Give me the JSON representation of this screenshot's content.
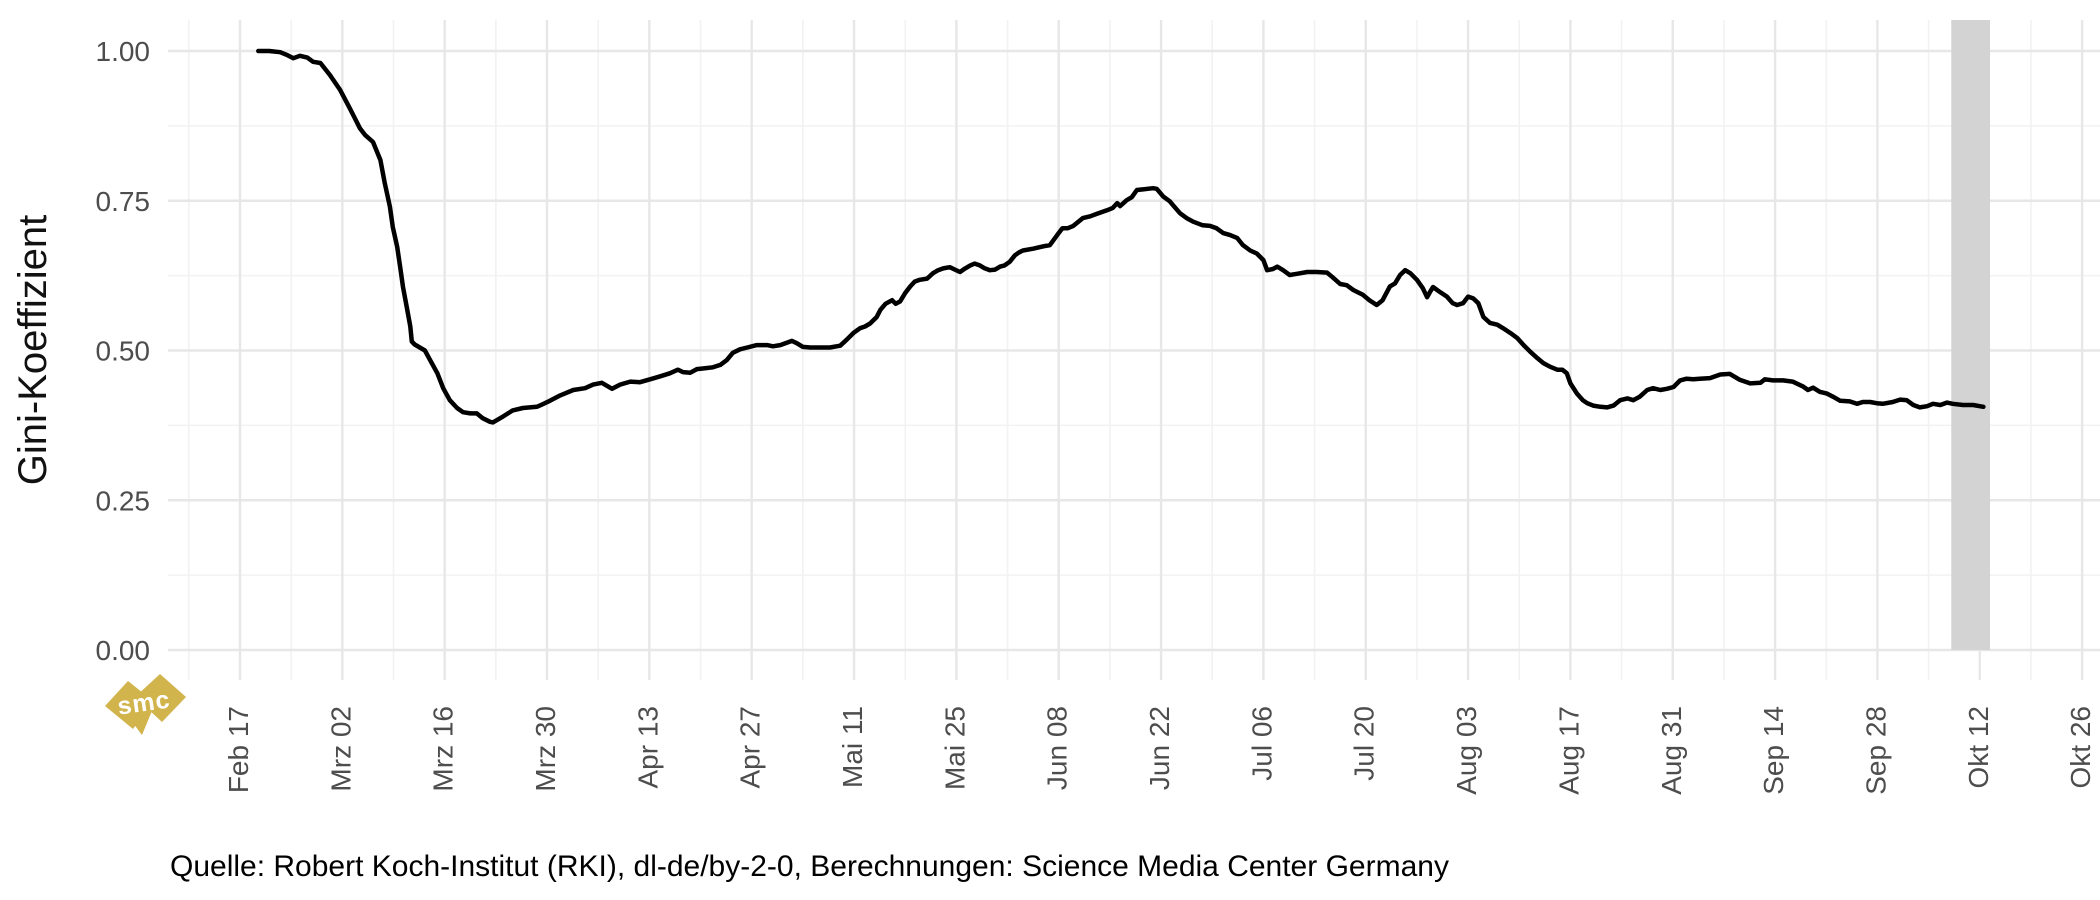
{
  "figure": {
    "ylabel": "Gini-Koeffizient",
    "caption": "Quelle: Robert Koch-Institut (RKI), dl-de/by-2-0, Berechnungen: Science Media Center Germany",
    "watermark_text": "smc"
  },
  "colors": {
    "background": "#ffffff",
    "line": "#000000",
    "grid_major": "#e7e7e7",
    "grid_minor": "#f2f2f2",
    "tick_label": "#4d4d4d",
    "axis_title": "#111111",
    "highlight_band": "#d3d3d3",
    "watermark_gold": "#d2b44c"
  },
  "chart_data": {
    "type": "line",
    "title": "",
    "xlabel": "",
    "ylabel": "Gini-Koeffizient",
    "caption": "Quelle: Robert Koch-Institut (RKI), dl-de/by-2-0, Berechnungen: Science Media Center Germany",
    "legend": "none",
    "grid": "major and minor, light gray on white",
    "x_axis": {
      "unit": "date, year 2020, day offsets measured from Feb 17",
      "tick_labels": [
        "Feb 17",
        "Mrz 02",
        "Mrz 16",
        "Mrz 30",
        "Apr 13",
        "Apr 27",
        "Mai 11",
        "Mai 25",
        "Jun 08",
        "Jun 22",
        "Jul 06",
        "Jul 20",
        "Aug 03",
        "Aug 17",
        "Aug 31",
        "Sep 14",
        "Sep 28",
        "Okt 12",
        "Okt 26"
      ],
      "tick_days": [
        0,
        14,
        28,
        42,
        56,
        70,
        84,
        98,
        112,
        126,
        140,
        154,
        168,
        182,
        196,
        210,
        224,
        238,
        252
      ],
      "minor_grid_interval_days": 7,
      "range_days": [
        -10,
        254
      ]
    },
    "y_axis": {
      "tick_labels": [
        "0.00",
        "0.25",
        "0.50",
        "0.75",
        "1.00"
      ],
      "tick_values": [
        0,
        0.25,
        0.5,
        0.75,
        1.0
      ],
      "minor_grid_values": [
        0.125,
        0.375,
        0.625,
        0.875
      ],
      "range": [
        0,
        1
      ]
    },
    "highlight_band": {
      "start_day": 234.1,
      "end_day": 239.4,
      "from_value": 0,
      "to_value": "panel-top",
      "color": "#d3d3d3"
    },
    "series": [
      {
        "name": "Gini-Koeffizient",
        "color": "#000000",
        "points": [
          [
            2.5,
            1.0
          ],
          [
            4,
            1.0
          ],
          [
            5.5,
            0.998
          ],
          [
            6.5,
            0.993
          ],
          [
            7.3,
            0.988
          ],
          [
            8.2,
            0.992
          ],
          [
            9.2,
            0.989
          ],
          [
            10,
            0.982
          ],
          [
            11,
            0.98
          ],
          [
            12.3,
            0.96
          ],
          [
            13.7,
            0.935
          ],
          [
            15,
            0.905
          ],
          [
            15.7,
            0.888
          ],
          [
            16.4,
            0.871
          ],
          [
            17.1,
            0.86
          ],
          [
            18.2,
            0.848
          ],
          [
            19.2,
            0.818
          ],
          [
            19.8,
            0.78
          ],
          [
            20.5,
            0.74
          ],
          [
            20.9,
            0.706
          ],
          [
            21.5,
            0.673
          ],
          [
            21.9,
            0.64
          ],
          [
            22.3,
            0.606
          ],
          [
            22.8,
            0.573
          ],
          [
            23.3,
            0.54
          ],
          [
            23.5,
            0.515
          ],
          [
            23.9,
            0.51
          ],
          [
            24.6,
            0.505
          ],
          [
            25.3,
            0.5
          ],
          [
            26,
            0.484
          ],
          [
            27,
            0.462
          ],
          [
            27.8,
            0.437
          ],
          [
            28.7,
            0.417
          ],
          [
            29.7,
            0.404
          ],
          [
            30.5,
            0.397
          ],
          [
            31.5,
            0.395
          ],
          [
            32.4,
            0.395
          ],
          [
            33.2,
            0.387
          ],
          [
            34.2,
            0.381
          ],
          [
            34.6,
            0.38
          ],
          [
            36,
            0.39
          ],
          [
            37.3,
            0.4
          ],
          [
            38.7,
            0.404
          ],
          [
            40.6,
            0.406
          ],
          [
            41,
            0.408
          ],
          [
            42.4,
            0.416
          ],
          [
            43.8,
            0.425
          ],
          [
            45.6,
            0.434
          ],
          [
            47.2,
            0.437
          ],
          [
            48.3,
            0.443
          ],
          [
            49.5,
            0.446
          ],
          [
            50.9,
            0.436
          ],
          [
            52,
            0.443
          ],
          [
            53.4,
            0.448
          ],
          [
            54.7,
            0.447
          ],
          [
            56.1,
            0.452
          ],
          [
            57.5,
            0.457
          ],
          [
            58.8,
            0.462
          ],
          [
            59.9,
            0.468
          ],
          [
            60.6,
            0.464
          ],
          [
            61.6,
            0.463
          ],
          [
            62.5,
            0.469
          ],
          [
            63.3,
            0.47
          ],
          [
            64.7,
            0.472
          ],
          [
            65.7,
            0.476
          ],
          [
            66.6,
            0.484
          ],
          [
            67.4,
            0.496
          ],
          [
            68.4,
            0.502
          ],
          [
            69.4,
            0.505
          ],
          [
            70.7,
            0.509
          ],
          [
            72.1,
            0.509
          ],
          [
            72.9,
            0.507
          ],
          [
            73.9,
            0.509
          ],
          [
            74.8,
            0.513
          ],
          [
            75.5,
            0.516
          ],
          [
            76.2,
            0.512
          ],
          [
            77,
            0.506
          ],
          [
            78,
            0.505
          ],
          [
            79.3,
            0.505
          ],
          [
            80.7,
            0.505
          ],
          [
            82.1,
            0.508
          ],
          [
            83,
            0.518
          ],
          [
            83.9,
            0.529
          ],
          [
            84.8,
            0.537
          ],
          [
            85.5,
            0.54
          ],
          [
            86.2,
            0.545
          ],
          [
            87.1,
            0.556
          ],
          [
            87.6,
            0.568
          ],
          [
            88.3,
            0.578
          ],
          [
            89.2,
            0.584
          ],
          [
            89.7,
            0.578
          ],
          [
            90.3,
            0.582
          ],
          [
            91,
            0.596
          ],
          [
            91.7,
            0.607
          ],
          [
            92.3,
            0.615
          ],
          [
            93,
            0.618
          ],
          [
            94,
            0.62
          ],
          [
            94.8,
            0.629
          ],
          [
            95.5,
            0.634
          ],
          [
            96.2,
            0.637
          ],
          [
            97.1,
            0.639
          ],
          [
            97.8,
            0.635
          ],
          [
            98.5,
            0.631
          ],
          [
            99.2,
            0.637
          ],
          [
            99.9,
            0.642
          ],
          [
            100.5,
            0.645
          ],
          [
            101.2,
            0.642
          ],
          [
            101.9,
            0.637
          ],
          [
            102.6,
            0.634
          ],
          [
            103.3,
            0.635
          ],
          [
            104,
            0.64
          ],
          [
            104.6,
            0.642
          ],
          [
            105.3,
            0.648
          ],
          [
            106,
            0.659
          ],
          [
            106.6,
            0.664
          ],
          [
            107.1,
            0.667
          ],
          [
            108.5,
            0.67
          ],
          [
            109.9,
            0.674
          ],
          [
            110.8,
            0.676
          ],
          [
            111.8,
            0.693
          ],
          [
            112.5,
            0.704
          ],
          [
            113.2,
            0.704
          ],
          [
            114,
            0.708
          ],
          [
            115.3,
            0.721
          ],
          [
            116.3,
            0.724
          ],
          [
            117.2,
            0.728
          ],
          [
            118.6,
            0.734
          ],
          [
            119.4,
            0.738
          ],
          [
            120,
            0.746
          ],
          [
            120.4,
            0.741
          ],
          [
            121.3,
            0.751
          ],
          [
            122,
            0.756
          ],
          [
            122.7,
            0.768
          ],
          [
            123.5,
            0.769
          ],
          [
            124.9,
            0.771
          ],
          [
            125.4,
            0.77
          ],
          [
            126.3,
            0.757
          ],
          [
            127.2,
            0.749
          ],
          [
            127.6,
            0.743
          ],
          [
            128.6,
            0.729
          ],
          [
            129.5,
            0.721
          ],
          [
            130.4,
            0.715
          ],
          [
            131.7,
            0.709
          ],
          [
            132.7,
            0.708
          ],
          [
            133.6,
            0.704
          ],
          [
            134.5,
            0.696
          ],
          [
            135.4,
            0.693
          ],
          [
            136.4,
            0.688
          ],
          [
            137.2,
            0.676
          ],
          [
            138.2,
            0.667
          ],
          [
            139.1,
            0.662
          ],
          [
            140,
            0.651
          ],
          [
            140.5,
            0.634
          ],
          [
            141.3,
            0.636
          ],
          [
            141.9,
            0.64
          ],
          [
            142.7,
            0.634
          ],
          [
            143.6,
            0.626
          ],
          [
            144.6,
            0.628
          ],
          [
            146,
            0.631
          ],
          [
            147.3,
            0.631
          ],
          [
            148.7,
            0.63
          ],
          [
            149.4,
            0.623
          ],
          [
            150.5,
            0.611
          ],
          [
            151.4,
            0.609
          ],
          [
            152.3,
            0.601
          ],
          [
            153.6,
            0.593
          ],
          [
            154.5,
            0.584
          ],
          [
            155.5,
            0.576
          ],
          [
            156.3,
            0.584
          ],
          [
            157.3,
            0.607
          ],
          [
            158,
            0.612
          ],
          [
            158.7,
            0.626
          ],
          [
            159.4,
            0.634
          ],
          [
            160.1,
            0.629
          ],
          [
            161,
            0.618
          ],
          [
            161.8,
            0.604
          ],
          [
            162.4,
            0.589
          ],
          [
            162.8,
            0.598
          ],
          [
            163.2,
            0.606
          ],
          [
            164.1,
            0.598
          ],
          [
            165.1,
            0.59
          ],
          [
            165.9,
            0.579
          ],
          [
            166.5,
            0.576
          ],
          [
            167.3,
            0.579
          ],
          [
            168,
            0.59
          ],
          [
            168.7,
            0.587
          ],
          [
            169.4,
            0.579
          ],
          [
            170.1,
            0.556
          ],
          [
            171,
            0.546
          ],
          [
            172,
            0.543
          ],
          [
            172.8,
            0.537
          ],
          [
            173.8,
            0.529
          ],
          [
            174.7,
            0.521
          ],
          [
            175.6,
            0.509
          ],
          [
            176.5,
            0.498
          ],
          [
            177.5,
            0.487
          ],
          [
            178.3,
            0.479
          ],
          [
            179.2,
            0.473
          ],
          [
            180.2,
            0.468
          ],
          [
            180.9,
            0.468
          ],
          [
            181.5,
            0.462
          ],
          [
            182,
            0.445
          ],
          [
            182.9,
            0.428
          ],
          [
            183.7,
            0.417
          ],
          [
            184.3,
            0.412
          ],
          [
            185.1,
            0.408
          ],
          [
            186.1,
            0.406
          ],
          [
            187,
            0.405
          ],
          [
            187.9,
            0.408
          ],
          [
            188.8,
            0.417
          ],
          [
            189.8,
            0.42
          ],
          [
            190.6,
            0.417
          ],
          [
            191.5,
            0.423
          ],
          [
            192.5,
            0.434
          ],
          [
            193.3,
            0.437
          ],
          [
            194.3,
            0.434
          ],
          [
            195.2,
            0.436
          ],
          [
            196.1,
            0.439
          ],
          [
            197,
            0.45
          ],
          [
            197.9,
            0.453
          ],
          [
            198.8,
            0.452
          ],
          [
            199.7,
            0.453
          ],
          [
            201.1,
            0.454
          ],
          [
            202.5,
            0.46
          ],
          [
            203.8,
            0.461
          ],
          [
            205.2,
            0.451
          ],
          [
            206.6,
            0.445
          ],
          [
            208,
            0.446
          ],
          [
            208.6,
            0.452
          ],
          [
            209.7,
            0.45
          ],
          [
            211.1,
            0.45
          ],
          [
            212.4,
            0.448
          ],
          [
            213.8,
            0.44
          ],
          [
            214.5,
            0.434
          ],
          [
            215.2,
            0.438
          ],
          [
            216.1,
            0.431
          ],
          [
            217.1,
            0.428
          ],
          [
            217.9,
            0.423
          ],
          [
            218.9,
            0.416
          ],
          [
            220.2,
            0.415
          ],
          [
            221.2,
            0.411
          ],
          [
            222,
            0.414
          ],
          [
            223,
            0.414
          ],
          [
            223.9,
            0.412
          ],
          [
            224.7,
            0.411
          ],
          [
            226.1,
            0.414
          ],
          [
            227.1,
            0.418
          ],
          [
            228,
            0.417
          ],
          [
            228.9,
            0.409
          ],
          [
            229.8,
            0.405
          ],
          [
            230.8,
            0.407
          ],
          [
            231.6,
            0.411
          ],
          [
            232.6,
            0.409
          ],
          [
            233.5,
            0.413
          ],
          [
            234.3,
            0.411
          ],
          [
            235.7,
            0.409
          ],
          [
            237.1,
            0.409
          ],
          [
            238,
            0.407
          ],
          [
            238.5,
            0.406
          ]
        ]
      }
    ]
  }
}
